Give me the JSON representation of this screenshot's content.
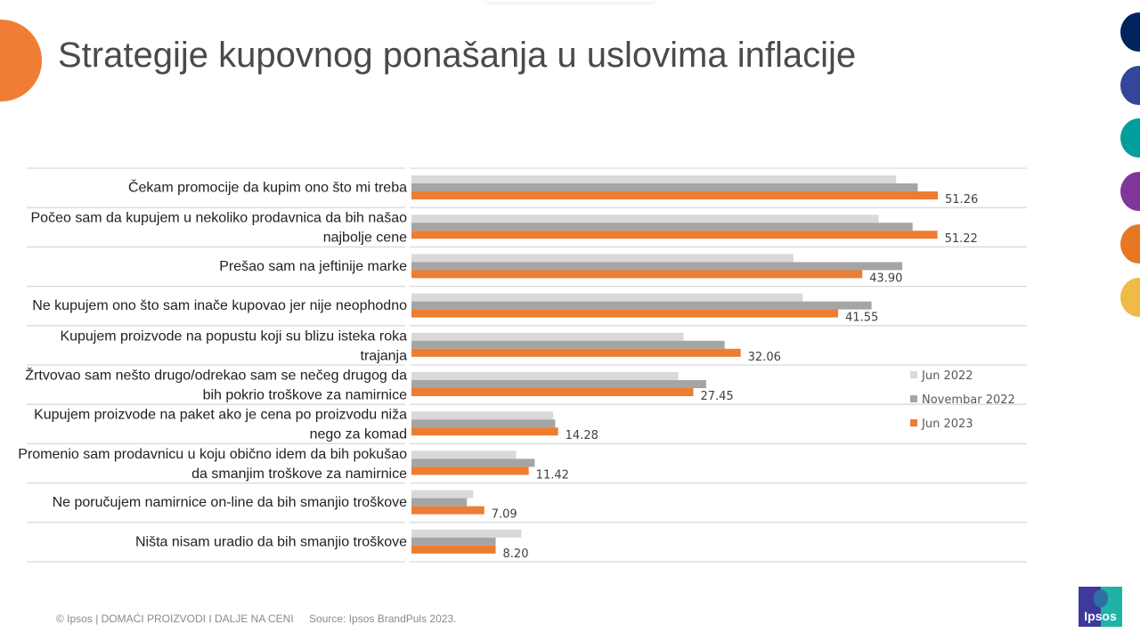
{
  "slide": {
    "title": "Strategije kupovnog ponašanja u uslovima inflacije",
    "footer": "© Ipsos | DOMAĆI PROIZVODI I DALJE NA CENI",
    "source": "Source: Ipsos BrandPuls 2023.",
    "logo_text": "Ipsos",
    "brand_colors": [
      "#00245B",
      "#33469B",
      "#009E9C",
      "#80379B",
      "#E87722",
      "#F0BA48"
    ],
    "accent_color": "#EF7E34"
  },
  "chart_data": {
    "type": "bar",
    "orientation": "horizontal",
    "title": "",
    "xlabel": "",
    "ylabel": "",
    "xlim": [
      0,
      60
    ],
    "grid": "horizontal separators between categories",
    "legend_position": "right",
    "categories": [
      [
        "Čekam promocije da kupim ono što mi treba"
      ],
      [
        "Počeo sam da kupujem u nekoliko prodavnica da bih našao",
        "najbolje cene"
      ],
      [
        "Prešao sam na jeftinije marke"
      ],
      [
        "Ne kupujem ono što sam inače kupovao jer nije neophodno"
      ],
      [
        "Kupujem proizvode na popustu koji su blizu isteka roka",
        "trajanja"
      ],
      [
        "Žrtvovao sam nešto drugo/odrekao sam se nečeg drugog da",
        "bih pokrio troškove za namirnice"
      ],
      [
        "Kupujem proizvode na paket ako je cena po proizvodu niža",
        "nego za komad"
      ],
      [
        "Promenio sam prodavnicu u koju obično idem da bih pokušao",
        "da smanjim troškove za namirnice"
      ],
      [
        "Ne poručujem namirnice on-line da bih smanjio troškove"
      ],
      [
        "Ništa nisam uradio da bih smanjio troškove"
      ]
    ],
    "series": [
      {
        "name": "Jun 2022",
        "color": "#D9D9D9",
        "values": [
          47.2,
          45.5,
          37.2,
          38.1,
          26.5,
          26.0,
          13.8,
          10.2,
          6.0,
          10.7
        ],
        "labeled": false
      },
      {
        "name": "Novembar 2022",
        "color": "#A5A5A5",
        "values": [
          49.3,
          48.8,
          47.8,
          44.8,
          30.5,
          28.7,
          14.0,
          12.0,
          5.4,
          8.2
        ],
        "labeled": false
      },
      {
        "name": "Jun 2023",
        "color": "#ED7D31",
        "values": [
          51.26,
          51.22,
          43.9,
          41.55,
          32.06,
          27.45,
          14.28,
          11.42,
          7.09,
          8.2
        ],
        "labeled": true,
        "data_labels": [
          "51.26",
          "51.22",
          "43.90",
          "41.55",
          "32.06",
          "27.45",
          "14.28",
          "11.42",
          "7.09",
          "8.20"
        ]
      }
    ]
  }
}
